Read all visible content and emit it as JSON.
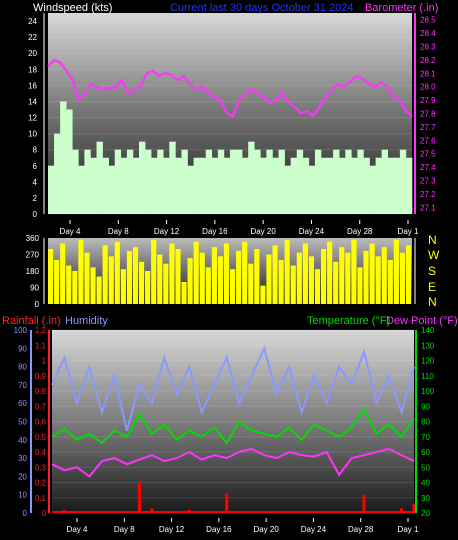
{
  "header": {
    "left_label": "Windspeed (kts)",
    "center_label": "Current last 30 days October 31 2024",
    "right_label": "Barometer (.in)"
  },
  "compass": [
    "N",
    "W",
    "S",
    "E",
    "N"
  ],
  "bottom_header": {
    "rain_label": "Rainfall (.in)",
    "humidity_label": "Humidity",
    "temp_label": "Temperature (°F)",
    "dew_label": "Dew Point (°F)"
  },
  "colors": {
    "windspeed": "#ccffcc",
    "barometer": "#ff33ff",
    "direction": "#ffff00",
    "rain": "#ff0000",
    "humidity": "#8899ff",
    "temperature": "#00dd00",
    "dewpoint": "#ff33ff",
    "header_blue": "#2233ff"
  },
  "chart_data": [
    {
      "type": "area",
      "id": "wind_baro",
      "x_ticks": [
        "Day 4",
        "Day 8",
        "Day 12",
        "Day 16",
        "Day 20",
        "Day 24",
        "Day 28",
        "Day 1"
      ],
      "y_left": {
        "label": "Windspeed (kts)",
        "ticks": [
          0,
          2,
          4,
          6,
          8,
          10,
          12,
          14,
          16,
          18,
          20,
          22,
          24
        ],
        "range": [
          0,
          25
        ]
      },
      "y_right": {
        "label": "Barometer (.in)",
        "ticks": [
          27.1,
          27.2,
          27.3,
          27.4,
          27.5,
          27.6,
          27.7,
          27.8,
          27.9,
          28.0,
          28.1,
          28.2,
          28.3,
          28.4,
          28.5
        ],
        "range": [
          27.05,
          28.55
        ]
      },
      "series": [
        {
          "name": "Windspeed",
          "axis": "left",
          "values": [
            6,
            10,
            14,
            13,
            8,
            6,
            8,
            7,
            9,
            7,
            6,
            8,
            7,
            8,
            7,
            9,
            8,
            7,
            8,
            7,
            9,
            7,
            8,
            6,
            7,
            7,
            8,
            7,
            8,
            7,
            8,
            8,
            7,
            9,
            8,
            7,
            8,
            7,
            8,
            6,
            7,
            8,
            7,
            6,
            8,
            7,
            7,
            8,
            7,
            8,
            7,
            8,
            7,
            6,
            7,
            8,
            7,
            7,
            8,
            7
          ]
        },
        {
          "name": "Barometer",
          "axis": "right",
          "values": [
            28.15,
            28.2,
            28.18,
            28.12,
            28.05,
            27.9,
            27.95,
            28.02,
            28.0,
            27.98,
            27.99,
            28.0,
            28.05,
            27.95,
            27.98,
            28.0,
            28.1,
            28.12,
            28.08,
            28.1,
            28.09,
            28.05,
            28.08,
            28.02,
            27.98,
            28.0,
            27.95,
            27.92,
            27.9,
            27.8,
            27.78,
            27.9,
            27.95,
            27.98,
            27.95,
            27.92,
            27.88,
            27.9,
            27.95,
            27.88,
            27.85,
            27.8,
            27.82,
            27.78,
            27.85,
            27.92,
            27.97,
            28.02,
            28.0,
            28.04,
            28.08,
            28.06,
            28.02,
            28.0,
            28.03,
            28.0,
            27.92,
            27.9,
            27.82,
            27.78
          ]
        }
      ]
    },
    {
      "type": "bar",
      "id": "wind_direction",
      "x_ticks": [
        "Day 4",
        "Day 8",
        "Day 12",
        "Day 16",
        "Day 20",
        "Day 24",
        "Day 28",
        "Day 1"
      ],
      "y": {
        "ticks": [
          0,
          90,
          180,
          270,
          360
        ],
        "range": [
          0,
          360
        ]
      },
      "series": [
        {
          "name": "Wind direction",
          "values": [
            300,
            240,
            330,
            210,
            180,
            350,
            280,
            200,
            150,
            320,
            260,
            340,
            190,
            290,
            310,
            230,
            180,
            350,
            270,
            220,
            330,
            300,
            120,
            250,
            340,
            280,
            200,
            310,
            260,
            330,
            190,
            290,
            340,
            220,
            300,
            100,
            270,
            320,
            240,
            350,
            210,
            280,
            330,
            260,
            190,
            300,
            340,
            230,
            310,
            280,
            350,
            200,
            290,
            330,
            260,
            310,
            240,
            350,
            280,
            320
          ]
        }
      ]
    },
    {
      "type": "line",
      "id": "rain_humidity_temp",
      "x_ticks": [
        "Day 4",
        "Day 8",
        "Day 12",
        "Day 16",
        "Day 20",
        "Day 24",
        "Day 28",
        "Day 1"
      ],
      "y_left_outer": {
        "label": "Humidity",
        "ticks": [
          0,
          10,
          20,
          30,
          40,
          50,
          60,
          70,
          80,
          90,
          100
        ],
        "range": [
          0,
          100
        ]
      },
      "y_left_inner": {
        "label": "Rainfall (.in)",
        "ticks": [
          0,
          0.1,
          0.2,
          0.3,
          0.4,
          0.5,
          0.6,
          0.7,
          0.8,
          0.9,
          1,
          1.1,
          1.2
        ],
        "range": [
          0,
          1.2
        ]
      },
      "y_right": {
        "label": "Temperature (°F)",
        "ticks": [
          20,
          30,
          40,
          50,
          60,
          70,
          80,
          90,
          100,
          110,
          120,
          130,
          140
        ],
        "range": [
          20,
          140
        ]
      },
      "series": [
        {
          "name": "Humidity",
          "axis": "left_outer",
          "values": [
            70,
            85,
            60,
            80,
            55,
            75,
            45,
            70,
            60,
            85,
            65,
            80,
            55,
            70,
            85,
            60,
            75,
            90,
            65,
            80,
            55,
            75,
            60,
            80,
            70,
            88,
            60,
            75,
            55,
            80
          ]
        },
        {
          "name": "Temperature",
          "axis": "right",
          "values": [
            70,
            75,
            68,
            72,
            66,
            74,
            70,
            85,
            72,
            78,
            68,
            74,
            70,
            76,
            66,
            80,
            74,
            72,
            70,
            76,
            68,
            78,
            74,
            70,
            76,
            88,
            72,
            78,
            70,
            82
          ]
        },
        {
          "name": "Dew Point",
          "axis": "right",
          "values": [
            52,
            48,
            50,
            44,
            54,
            56,
            52,
            55,
            58,
            54,
            56,
            60,
            55,
            58,
            56,
            60,
            62,
            58,
            56,
            60,
            58,
            57,
            60,
            45,
            56,
            58,
            60,
            62,
            58,
            54
          ]
        },
        {
          "name": "Rainfall",
          "axis": "left_inner",
          "values": [
            0,
            0.02,
            0,
            0,
            0,
            0,
            0,
            0.2,
            0.03,
            0,
            0,
            0.02,
            0,
            0,
            0.13,
            0,
            0,
            0,
            0,
            0,
            0,
            0,
            0,
            0,
            0,
            0.12,
            0,
            0,
            0.03,
            0.06
          ]
        }
      ]
    }
  ]
}
